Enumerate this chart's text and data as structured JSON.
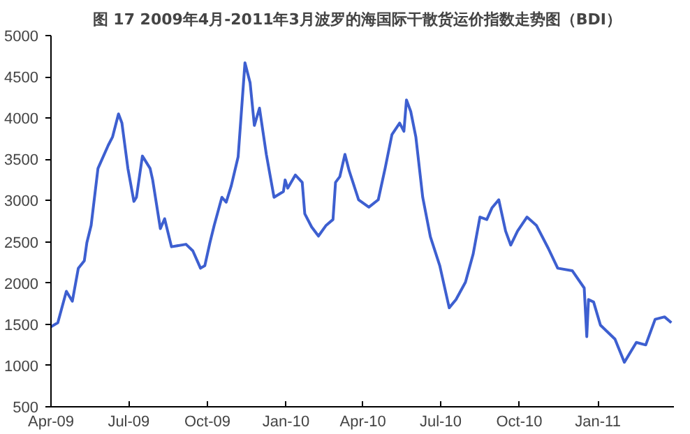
{
  "chart_data": {
    "type": "line",
    "title": "图 17   2009年4月-2011年3月波罗的海国际干散货运价指数走势图（BDI）",
    "x": [
      "2009-04-01",
      "2009-04-09",
      "2009-04-19",
      "2009-04-26",
      "2009-05-03",
      "2009-05-10",
      "2009-05-13",
      "2009-05-18",
      "2009-05-26",
      "2009-06-07",
      "2009-06-12",
      "2009-06-19",
      "2009-06-23",
      "2009-06-30",
      "2009-07-07",
      "2009-07-10",
      "2009-07-17",
      "2009-07-26",
      "2009-07-29",
      "2009-08-07",
      "2009-08-12",
      "2009-08-20",
      "2009-09-06",
      "2009-09-14",
      "2009-09-23",
      "2009-09-28",
      "2009-10-04",
      "2009-10-09",
      "2009-10-18",
      "2009-10-23",
      "2009-10-29",
      "2009-11-06",
      "2009-11-14",
      "2009-11-20",
      "2009-11-25",
      "2009-12-01",
      "2009-12-09",
      "2009-12-18",
      "2009-12-29",
      "2009-12-31",
      "2010-01-03",
      "2010-01-12",
      "2010-01-20",
      "2010-01-23",
      "2010-01-31",
      "2010-02-08",
      "2010-02-17",
      "2010-02-25",
      "2010-02-28",
      "2010-03-05",
      "2010-03-11",
      "2010-03-16",
      "2010-03-27",
      "2010-04-08",
      "2010-04-19",
      "2010-04-27",
      "2010-05-05",
      "2010-05-14",
      "2010-05-19",
      "2010-05-22",
      "2010-05-27",
      "2010-06-02",
      "2010-06-10",
      "2010-06-19",
      "2010-06-30",
      "2010-07-11",
      "2010-07-19",
      "2010-07-30",
      "2010-08-08",
      "2010-08-16",
      "2010-08-24",
      "2010-08-30",
      "2010-09-07",
      "2010-09-15",
      "2010-09-21",
      "2010-09-29",
      "2010-10-10",
      "2010-10-21",
      "2010-11-04",
      "2010-11-15",
      "2010-12-02",
      "2010-12-16",
      "2010-12-19",
      "2010-12-21",
      "2010-12-27",
      "2011-01-04",
      "2011-01-21",
      "2011-02-01",
      "2011-02-15",
      "2011-02-26",
      "2011-03-09",
      "2011-03-20",
      "2011-03-28"
    ],
    "series": [
      {
        "color": "#3d5fd0",
        "values": [
          1470,
          1520,
          1900,
          1780,
          2180,
          2270,
          2490,
          2700,
          3390,
          3670,
          3770,
          4050,
          3940,
          3390,
          2990,
          3040,
          3540,
          3390,
          3250,
          2660,
          2780,
          2440,
          2470,
          2390,
          2180,
          2210,
          2490,
          2700,
          3040,
          2980,
          3180,
          3530,
          4670,
          4430,
          3910,
          4120,
          3560,
          3040,
          3110,
          3250,
          3150,
          3310,
          3220,
          2840,
          2680,
          2570,
          2700,
          2770,
          3220,
          3290,
          3560,
          3360,
          3010,
          2920,
          3010,
          3390,
          3800,
          3940,
          3840,
          4220,
          4080,
          3770,
          3040,
          2560,
          2210,
          1700,
          1800,
          2010,
          2350,
          2800,
          2770,
          2910,
          3010,
          2630,
          2460,
          2630,
          2800,
          2700,
          2420,
          2180,
          2150,
          1940,
          1350,
          1800,
          1770,
          1490,
          1320,
          1040,
          1280,
          1250,
          1560,
          1590,
          1520
        ]
      }
    ],
    "xlim": [
      "2009-04-01",
      "2011-03-31"
    ],
    "xticks": [
      {
        "value": "2009-04-01",
        "label": "Apr-09"
      },
      {
        "value": "2009-07-01",
        "label": "Jul-09"
      },
      {
        "value": "2009-10-01",
        "label": "Oct-09"
      },
      {
        "value": "2010-01-01",
        "label": "Jan-10"
      },
      {
        "value": "2010-04-01",
        "label": "Apr-10"
      },
      {
        "value": "2010-07-01",
        "label": "Jul-10"
      },
      {
        "value": "2010-10-01",
        "label": "Oct-10"
      },
      {
        "value": "2011-01-01",
        "label": "Jan-11"
      }
    ],
    "ylim": [
      500,
      5000
    ],
    "yticks": [
      500,
      1000,
      1500,
      2000,
      2500,
      3000,
      3500,
      4000,
      4500,
      5000
    ],
    "grid": false,
    "line_style": "solid"
  }
}
